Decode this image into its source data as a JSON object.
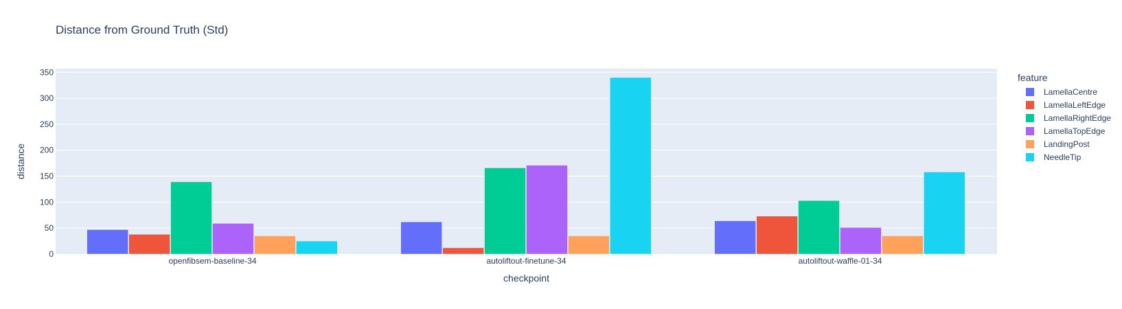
{
  "chart_data": {
    "type": "bar",
    "title": "Distance from Ground Truth (Std)",
    "xlabel": "checkpoint",
    "ylabel": "distance",
    "categories": [
      "openfibsem-baseline-34",
      "autoliftout-finetune-34",
      "autoliftout-waffle-01-34"
    ],
    "ylim": [
      0,
      357
    ],
    "yticks": [
      0,
      50,
      100,
      150,
      200,
      250,
      300,
      350
    ],
    "grid": true,
    "legend_title": "feature",
    "legend_position": "right",
    "series": [
      {
        "name": "LamellaCentre",
        "color": "#636efa",
        "values": [
          47,
          62,
          64
        ]
      },
      {
        "name": "LamellaLeftEdge",
        "color": "#ef553b",
        "values": [
          38,
          12,
          73
        ]
      },
      {
        "name": "LamellaRightEdge",
        "color": "#00cc96",
        "values": [
          139,
          166,
          103
        ]
      },
      {
        "name": "LamellaTopEdge",
        "color": "#ab63fa",
        "values": [
          59,
          171,
          51
        ]
      },
      {
        "name": "LandingPost",
        "color": "#ffa15a",
        "values": [
          35,
          35,
          35
        ]
      },
      {
        "name": "NeedleTip",
        "color": "#19d3f3",
        "values": [
          25,
          340,
          158
        ]
      }
    ]
  }
}
